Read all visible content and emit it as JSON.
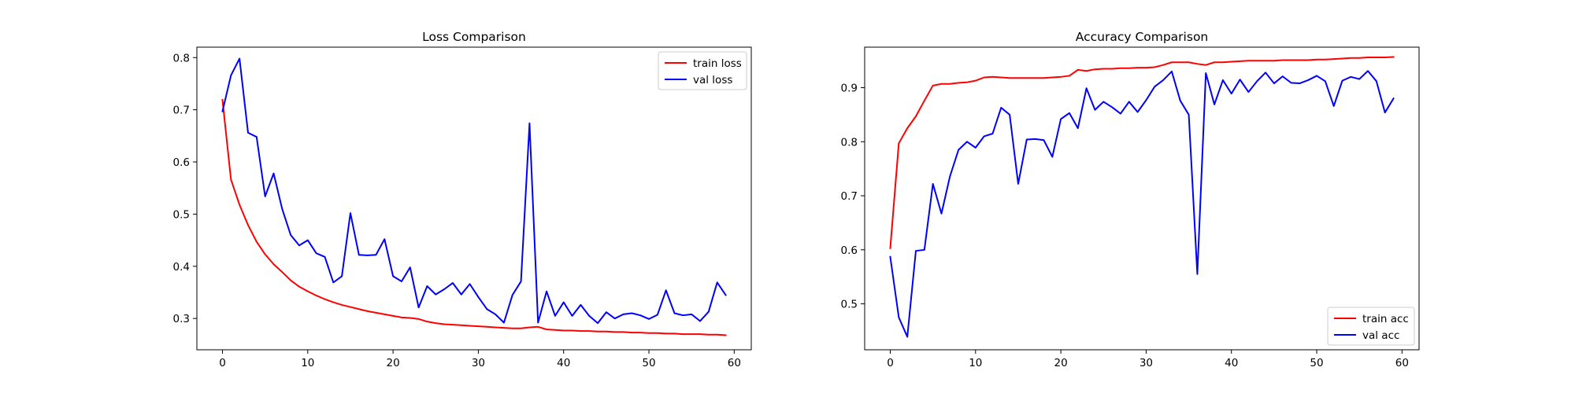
{
  "chart_data": [
    {
      "type": "line",
      "title": "Loss Comparison",
      "xlabel": "",
      "ylabel": "",
      "xlim": [
        -3.0,
        62.0
      ],
      "ylim": [
        0.24,
        0.82
      ],
      "xticks": [
        0,
        10,
        20,
        30,
        40,
        50,
        60
      ],
      "yticks": [
        0.3,
        0.4,
        0.5,
        0.6,
        0.7,
        0.8
      ],
      "ytick_decimals": 1,
      "grid": false,
      "legend_position": "top-right",
      "x": [
        0,
        1,
        2,
        3,
        4,
        5,
        6,
        7,
        8,
        9,
        10,
        11,
        12,
        13,
        14,
        15,
        16,
        17,
        18,
        19,
        20,
        21,
        22,
        23,
        24,
        25,
        26,
        27,
        28,
        29,
        30,
        31,
        32,
        33,
        34,
        35,
        36,
        37,
        38,
        39,
        40,
        41,
        42,
        43,
        44,
        45,
        46,
        47,
        48,
        49,
        50,
        51,
        52,
        53,
        54,
        55,
        56,
        57,
        58,
        59
      ],
      "series": [
        {
          "name": "train loss",
          "color": "#ff0000",
          "values": [
            0.719,
            0.566,
            0.518,
            0.479,
            0.447,
            0.423,
            0.404,
            0.389,
            0.373,
            0.361,
            0.352,
            0.344,
            0.337,
            0.331,
            0.326,
            0.322,
            0.318,
            0.314,
            0.311,
            0.308,
            0.305,
            0.302,
            0.301,
            0.299,
            0.294,
            0.291,
            0.289,
            0.288,
            0.287,
            0.286,
            0.285,
            0.284,
            0.283,
            0.282,
            0.281,
            0.281,
            0.283,
            0.284,
            0.279,
            0.278,
            0.277,
            0.277,
            0.276,
            0.276,
            0.275,
            0.275,
            0.274,
            0.274,
            0.273,
            0.273,
            0.272,
            0.272,
            0.271,
            0.271,
            0.27,
            0.27,
            0.27,
            0.269,
            0.269,
            0.268
          ]
        },
        {
          "name": "val loss",
          "color": "#0000ff",
          "values": [
            0.697,
            0.766,
            0.798,
            0.656,
            0.648,
            0.534,
            0.578,
            0.51,
            0.46,
            0.44,
            0.45,
            0.425,
            0.418,
            0.369,
            0.381,
            0.502,
            0.422,
            0.421,
            0.422,
            0.452,
            0.381,
            0.371,
            0.398,
            0.321,
            0.362,
            0.346,
            0.356,
            0.368,
            0.346,
            0.366,
            0.341,
            0.318,
            0.308,
            0.292,
            0.345,
            0.371,
            0.674,
            0.292,
            0.352,
            0.305,
            0.331,
            0.305,
            0.326,
            0.305,
            0.291,
            0.312,
            0.3,
            0.308,
            0.31,
            0.306,
            0.299,
            0.307,
            0.354,
            0.31,
            0.306,
            0.308,
            0.295,
            0.313,
            0.369,
            0.345
          ]
        }
      ]
    },
    {
      "type": "line",
      "title": "Accuracy Comparison",
      "xlabel": "",
      "ylabel": "",
      "xlim": [
        -3.0,
        62.0
      ],
      "ylim": [
        0.415,
        0.975
      ],
      "xticks": [
        0,
        10,
        20,
        30,
        40,
        50,
        60
      ],
      "yticks": [
        0.5,
        0.6,
        0.7,
        0.8,
        0.9
      ],
      "ytick_decimals": 1,
      "grid": false,
      "legend_position": "bottom-right",
      "x": [
        0,
        1,
        2,
        3,
        4,
        5,
        6,
        7,
        8,
        9,
        10,
        11,
        12,
        13,
        14,
        15,
        16,
        17,
        18,
        19,
        20,
        21,
        22,
        23,
        24,
        25,
        26,
        27,
        28,
        29,
        30,
        31,
        32,
        33,
        34,
        35,
        36,
        37,
        38,
        39,
        40,
        41,
        42,
        43,
        44,
        45,
        46,
        47,
        48,
        49,
        50,
        51,
        52,
        53,
        54,
        55,
        56,
        57,
        58,
        59
      ],
      "series": [
        {
          "name": "train acc",
          "color": "#ff0000",
          "values": [
            0.603,
            0.797,
            0.825,
            0.847,
            0.876,
            0.904,
            0.907,
            0.907,
            0.909,
            0.91,
            0.913,
            0.919,
            0.92,
            0.919,
            0.918,
            0.918,
            0.918,
            0.918,
            0.918,
            0.919,
            0.92,
            0.922,
            0.933,
            0.931,
            0.934,
            0.935,
            0.935,
            0.936,
            0.936,
            0.937,
            0.937,
            0.938,
            0.942,
            0.947,
            0.947,
            0.947,
            0.944,
            0.942,
            0.947,
            0.947,
            0.948,
            0.949,
            0.95,
            0.95,
            0.95,
            0.95,
            0.951,
            0.951,
            0.951,
            0.951,
            0.952,
            0.952,
            0.953,
            0.954,
            0.955,
            0.955,
            0.956,
            0.956,
            0.956,
            0.957
          ]
        },
        {
          "name": "val acc",
          "color": "#0000ff",
          "values": [
            0.587,
            0.475,
            0.439,
            0.598,
            0.6,
            0.722,
            0.667,
            0.736,
            0.785,
            0.8,
            0.789,
            0.81,
            0.815,
            0.863,
            0.85,
            0.722,
            0.804,
            0.805,
            0.803,
            0.772,
            0.842,
            0.853,
            0.825,
            0.899,
            0.859,
            0.874,
            0.864,
            0.852,
            0.874,
            0.855,
            0.877,
            0.902,
            0.914,
            0.93,
            0.876,
            0.85,
            0.555,
            0.927,
            0.869,
            0.914,
            0.889,
            0.915,
            0.892,
            0.912,
            0.928,
            0.908,
            0.921,
            0.909,
            0.908,
            0.914,
            0.922,
            0.912,
            0.866,
            0.913,
            0.92,
            0.916,
            0.931,
            0.912,
            0.854,
            0.88
          ]
        }
      ]
    }
  ]
}
